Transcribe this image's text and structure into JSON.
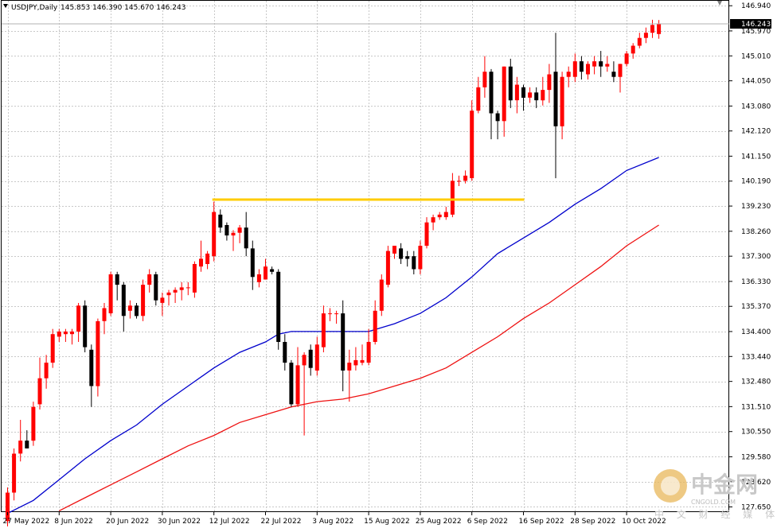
{
  "header": {
    "symbol_timeframe": "USDJPY,Daily",
    "ohlc_text": "145.853 146.390 145.670 146.243"
  },
  "watermark": {
    "brand_cn": "中金网",
    "domain": "CNGOLD.COM",
    "tagline": "中 文 财 经 媒 体"
  },
  "colors": {
    "up": "#ff0000",
    "down": "#000000",
    "ma_fast": "#0000cc",
    "ma_slow": "#ee1111",
    "level": "#ffcc00",
    "grid": "#c8c8c8",
    "price_line": "#b0b0b0"
  },
  "chart_data": {
    "type": "candlestick",
    "title": "USDJPY,Daily",
    "y_ticks": [
      146.94,
      145.97,
      145.01,
      144.05,
      143.08,
      142.12,
      141.15,
      140.19,
      139.23,
      138.26,
      137.3,
      136.33,
      135.37,
      134.4,
      133.44,
      132.48,
      131.51,
      130.55,
      129.58,
      128.62,
      127.65
    ],
    "y_tick_labels": [
      "146.940",
      "145.970",
      "145.010",
      "144.050",
      "143.080",
      "142.120",
      "141.150",
      "140.190",
      "139.230",
      "138.260",
      "137.300",
      "136.330",
      "135.370",
      "134.400",
      "133.440",
      "132.480",
      "131.510",
      "130.550",
      "129.580",
      "128.620",
      "127.650"
    ],
    "ylim": [
      127.45,
      147.13
    ],
    "current_price": 146.243,
    "current_price_label": "146.243",
    "x_tick_labels": [
      {
        "label": "27 May 2022",
        "index": 0
      },
      {
        "label": "8 Jun 2022",
        "index": 8
      },
      {
        "label": "20 Jun 2022",
        "index": 16
      },
      {
        "label": "30 Jun 2022",
        "index": 24
      },
      {
        "label": "12 Jul 2022",
        "index": 32
      },
      {
        "label": "22 Jul 2022",
        "index": 40
      },
      {
        "label": "3 Aug 2022",
        "index": 48
      },
      {
        "label": "15 Aug 2022",
        "index": 56
      },
      {
        "label": "25 Aug 2022",
        "index": 64
      },
      {
        "label": "6 Sep 2022",
        "index": 72
      },
      {
        "label": "16 Sep 2022",
        "index": 80
      },
      {
        "label": "28 Sep 2022",
        "index": 88
      },
      {
        "label": "10 Oct 2022",
        "index": 96
      }
    ],
    "candles": [
      {
        "o": 127.1,
        "h": 128.4,
        "l": 126.9,
        "c": 128.2
      },
      {
        "o": 128.2,
        "h": 129.9,
        "l": 127.9,
        "c": 129.7
      },
      {
        "o": 129.7,
        "h": 131.0,
        "l": 129.4,
        "c": 130.2
      },
      {
        "o": 130.2,
        "h": 130.6,
        "l": 129.9,
        "c": 129.9
      },
      {
        "o": 130.2,
        "h": 131.7,
        "l": 130.0,
        "c": 131.5
      },
      {
        "o": 131.6,
        "h": 133.4,
        "l": 131.4,
        "c": 132.6
      },
      {
        "o": 132.6,
        "h": 133.5,
        "l": 132.2,
        "c": 133.2
      },
      {
        "o": 133.2,
        "h": 134.5,
        "l": 133.0,
        "c": 134.3
      },
      {
        "o": 134.2,
        "h": 134.5,
        "l": 134.0,
        "c": 134.4
      },
      {
        "o": 134.3,
        "h": 134.5,
        "l": 134.0,
        "c": 134.4
      },
      {
        "o": 134.3,
        "h": 134.5,
        "l": 133.9,
        "c": 134.4
      },
      {
        "o": 134.4,
        "h": 135.5,
        "l": 134.0,
        "c": 135.4
      },
      {
        "o": 135.4,
        "h": 135.6,
        "l": 133.6,
        "c": 133.8
      },
      {
        "o": 133.7,
        "h": 133.9,
        "l": 131.5,
        "c": 132.3
      },
      {
        "o": 132.3,
        "h": 134.9,
        "l": 131.9,
        "c": 134.8
      },
      {
        "o": 134.8,
        "h": 135.5,
        "l": 134.3,
        "c": 135.3
      },
      {
        "o": 135.1,
        "h": 136.7,
        "l": 135.0,
        "c": 136.6
      },
      {
        "o": 136.6,
        "h": 136.7,
        "l": 135.6,
        "c": 136.2
      },
      {
        "o": 136.2,
        "h": 136.3,
        "l": 134.4,
        "c": 135.0
      },
      {
        "o": 135.2,
        "h": 135.6,
        "l": 134.9,
        "c": 135.4
      },
      {
        "o": 135.4,
        "h": 135.5,
        "l": 134.9,
        "c": 135.0
      },
      {
        "o": 135.0,
        "h": 136.4,
        "l": 134.8,
        "c": 136.2
      },
      {
        "o": 136.2,
        "h": 136.8,
        "l": 135.9,
        "c": 136.6
      },
      {
        "o": 136.6,
        "h": 136.7,
        "l": 135.4,
        "c": 135.6
      },
      {
        "o": 135.5,
        "h": 135.9,
        "l": 135.0,
        "c": 135.7
      },
      {
        "o": 135.8,
        "h": 136.0,
        "l": 135.4,
        "c": 135.9
      },
      {
        "o": 135.9,
        "h": 136.1,
        "l": 135.5,
        "c": 136.0
      },
      {
        "o": 136.0,
        "h": 136.3,
        "l": 135.6,
        "c": 136.1
      },
      {
        "o": 136.1,
        "h": 136.3,
        "l": 135.8,
        "c": 136.1
      },
      {
        "o": 135.9,
        "h": 137.1,
        "l": 135.7,
        "c": 137.0
      },
      {
        "o": 136.9,
        "h": 137.9,
        "l": 136.7,
        "c": 137.2
      },
      {
        "o": 137.0,
        "h": 137.5,
        "l": 136.8,
        "c": 137.4
      },
      {
        "o": 137.3,
        "h": 139.4,
        "l": 137.1,
        "c": 139.0
      },
      {
        "o": 138.9,
        "h": 139.1,
        "l": 138.2,
        "c": 138.4
      },
      {
        "o": 138.5,
        "h": 138.6,
        "l": 137.9,
        "c": 138.1
      },
      {
        "o": 138.1,
        "h": 138.3,
        "l": 137.5,
        "c": 138.2
      },
      {
        "o": 138.2,
        "h": 138.5,
        "l": 137.8,
        "c": 138.4
      },
      {
        "o": 138.4,
        "h": 139.0,
        "l": 137.3,
        "c": 137.6
      },
      {
        "o": 137.6,
        "h": 137.9,
        "l": 136.0,
        "c": 136.5
      },
      {
        "o": 136.3,
        "h": 136.8,
        "l": 136.1,
        "c": 136.6
      },
      {
        "o": 136.4,
        "h": 137.2,
        "l": 136.4,
        "c": 136.9
      },
      {
        "o": 136.8,
        "h": 136.9,
        "l": 136.6,
        "c": 136.7
      },
      {
        "o": 136.7,
        "h": 136.8,
        "l": 133.7,
        "c": 134.0
      },
      {
        "o": 134.0,
        "h": 134.3,
        "l": 132.9,
        "c": 133.2
      },
      {
        "o": 133.2,
        "h": 133.3,
        "l": 131.5,
        "c": 131.6
      },
      {
        "o": 131.6,
        "h": 133.8,
        "l": 131.5,
        "c": 133.1
      },
      {
        "o": 133.1,
        "h": 133.6,
        "l": 130.4,
        "c": 133.5
      },
      {
        "o": 133.7,
        "h": 133.9,
        "l": 132.7,
        "c": 133.0
      },
      {
        "o": 132.9,
        "h": 134.2,
        "l": 132.7,
        "c": 133.9
      },
      {
        "o": 133.8,
        "h": 135.4,
        "l": 133.6,
        "c": 135.1
      },
      {
        "o": 135.1,
        "h": 135.3,
        "l": 134.8,
        "c": 135.1
      },
      {
        "o": 135.1,
        "h": 135.2,
        "l": 134.7,
        "c": 135.1
      },
      {
        "o": 135.1,
        "h": 135.6,
        "l": 132.1,
        "c": 132.9
      },
      {
        "o": 132.9,
        "h": 133.7,
        "l": 131.7,
        "c": 133.2
      },
      {
        "o": 133.1,
        "h": 133.8,
        "l": 132.9,
        "c": 133.3
      },
      {
        "o": 133.2,
        "h": 133.9,
        "l": 133.1,
        "c": 133.3
      },
      {
        "o": 133.2,
        "h": 134.5,
        "l": 133.1,
        "c": 134.0
      },
      {
        "o": 134.0,
        "h": 135.6,
        "l": 133.9,
        "c": 135.2
      },
      {
        "o": 135.2,
        "h": 136.6,
        "l": 135.0,
        "c": 136.4
      },
      {
        "o": 136.2,
        "h": 137.7,
        "l": 136.1,
        "c": 137.5
      },
      {
        "o": 137.4,
        "h": 137.7,
        "l": 137.2,
        "c": 137.7
      },
      {
        "o": 137.6,
        "h": 137.8,
        "l": 137.0,
        "c": 137.2
      },
      {
        "o": 137.3,
        "h": 137.5,
        "l": 136.9,
        "c": 137.2
      },
      {
        "o": 137.3,
        "h": 137.5,
        "l": 136.6,
        "c": 136.8
      },
      {
        "o": 136.8,
        "h": 137.9,
        "l": 136.6,
        "c": 137.7
      },
      {
        "o": 137.7,
        "h": 138.8,
        "l": 137.6,
        "c": 138.6
      },
      {
        "o": 138.6,
        "h": 138.9,
        "l": 138.3,
        "c": 138.8
      },
      {
        "o": 138.8,
        "h": 139.0,
        "l": 138.7,
        "c": 138.9
      },
      {
        "o": 138.8,
        "h": 139.2,
        "l": 138.7,
        "c": 139.0
      },
      {
        "o": 138.9,
        "h": 140.5,
        "l": 138.8,
        "c": 140.2
      },
      {
        "o": 140.2,
        "h": 140.4,
        "l": 140.0,
        "c": 140.2
      },
      {
        "o": 140.2,
        "h": 140.6,
        "l": 140.1,
        "c": 140.4
      },
      {
        "o": 140.3,
        "h": 143.3,
        "l": 140.2,
        "c": 142.9
      },
      {
        "o": 142.9,
        "h": 144.2,
        "l": 142.8,
        "c": 143.8
      },
      {
        "o": 143.8,
        "h": 145.0,
        "l": 143.4,
        "c": 144.4
      },
      {
        "o": 144.4,
        "h": 144.5,
        "l": 141.8,
        "c": 142.8
      },
      {
        "o": 142.8,
        "h": 142.9,
        "l": 141.8,
        "c": 142.5
      },
      {
        "o": 142.5,
        "h": 144.6,
        "l": 141.9,
        "c": 144.6
      },
      {
        "o": 144.6,
        "h": 144.9,
        "l": 143.0,
        "c": 143.3
      },
      {
        "o": 143.3,
        "h": 144.2,
        "l": 142.8,
        "c": 143.9
      },
      {
        "o": 143.8,
        "h": 143.9,
        "l": 142.9,
        "c": 143.4
      },
      {
        "o": 143.4,
        "h": 143.8,
        "l": 143.2,
        "c": 143.6
      },
      {
        "o": 143.6,
        "h": 143.8,
        "l": 143.0,
        "c": 143.3
      },
      {
        "o": 143.3,
        "h": 144.2,
        "l": 143.1,
        "c": 143.7
      },
      {
        "o": 143.7,
        "h": 144.7,
        "l": 143.2,
        "c": 144.3
      },
      {
        "o": 144.4,
        "h": 145.9,
        "l": 140.3,
        "c": 142.3
      },
      {
        "o": 142.3,
        "h": 144.4,
        "l": 141.8,
        "c": 144.2
      },
      {
        "o": 144.2,
        "h": 144.6,
        "l": 143.8,
        "c": 144.4
      },
      {
        "o": 144.2,
        "h": 145.1,
        "l": 144.0,
        "c": 144.8
      },
      {
        "o": 144.8,
        "h": 145.0,
        "l": 144.1,
        "c": 144.4
      },
      {
        "o": 144.3,
        "h": 144.8,
        "l": 144.1,
        "c": 144.7
      },
      {
        "o": 144.6,
        "h": 145.0,
        "l": 144.3,
        "c": 144.8
      },
      {
        "o": 144.8,
        "h": 145.2,
        "l": 144.2,
        "c": 144.6
      },
      {
        "o": 144.6,
        "h": 145.0,
        "l": 144.4,
        "c": 144.7
      },
      {
        "o": 144.4,
        "h": 144.8,
        "l": 144.0,
        "c": 144.2
      },
      {
        "o": 144.2,
        "h": 144.7,
        "l": 143.6,
        "c": 144.7
      },
      {
        "o": 144.7,
        "h": 145.2,
        "l": 144.6,
        "c": 145.1
      },
      {
        "o": 145.1,
        "h": 145.5,
        "l": 144.9,
        "c": 145.4
      },
      {
        "o": 145.4,
        "h": 145.9,
        "l": 145.3,
        "c": 145.7
      },
      {
        "o": 145.7,
        "h": 146.1,
        "l": 145.5,
        "c": 145.9
      },
      {
        "o": 145.9,
        "h": 146.4,
        "l": 145.7,
        "c": 146.2
      },
      {
        "o": 145.85,
        "h": 146.39,
        "l": 145.67,
        "c": 146.24
      }
    ],
    "ma_fast": {
      "color": "#0000cc",
      "points": [
        [
          0,
          127.4
        ],
        [
          4,
          127.9
        ],
        [
          8,
          128.7
        ],
        [
          12,
          129.5
        ],
        [
          16,
          130.2
        ],
        [
          20,
          130.8
        ],
        [
          24,
          131.6
        ],
        [
          28,
          132.3
        ],
        [
          32,
          133.0
        ],
        [
          36,
          133.6
        ],
        [
          40,
          134.0
        ],
        [
          42,
          134.3
        ],
        [
          44,
          134.4
        ],
        [
          48,
          134.4
        ],
        [
          52,
          134.4
        ],
        [
          56,
          134.4
        ],
        [
          60,
          134.7
        ],
        [
          64,
          135.1
        ],
        [
          68,
          135.7
        ],
        [
          72,
          136.5
        ],
        [
          76,
          137.4
        ],
        [
          80,
          138.0
        ],
        [
          84,
          138.6
        ],
        [
          88,
          139.3
        ],
        [
          92,
          139.9
        ],
        [
          96,
          140.6
        ],
        [
          101,
          141.1
        ]
      ]
    },
    "ma_slow": {
      "color": "#ee1111",
      "points": [
        [
          8,
          127.5
        ],
        [
          12,
          128.0
        ],
        [
          16,
          128.5
        ],
        [
          20,
          129.0
        ],
        [
          24,
          129.5
        ],
        [
          28,
          130.0
        ],
        [
          32,
          130.4
        ],
        [
          36,
          130.9
        ],
        [
          40,
          131.2
        ],
        [
          44,
          131.5
        ],
        [
          48,
          131.7
        ],
        [
          52,
          131.8
        ],
        [
          56,
          132.0
        ],
        [
          60,
          132.3
        ],
        [
          64,
          132.6
        ],
        [
          68,
          133.0
        ],
        [
          72,
          133.6
        ],
        [
          76,
          134.2
        ],
        [
          80,
          134.9
        ],
        [
          84,
          135.5
        ],
        [
          88,
          136.2
        ],
        [
          92,
          136.9
        ],
        [
          96,
          137.7
        ],
        [
          101,
          138.5
        ]
      ]
    },
    "level_line": {
      "price": 139.48,
      "from_index": 32,
      "to_index": 80,
      "color": "#ffcc00"
    }
  }
}
